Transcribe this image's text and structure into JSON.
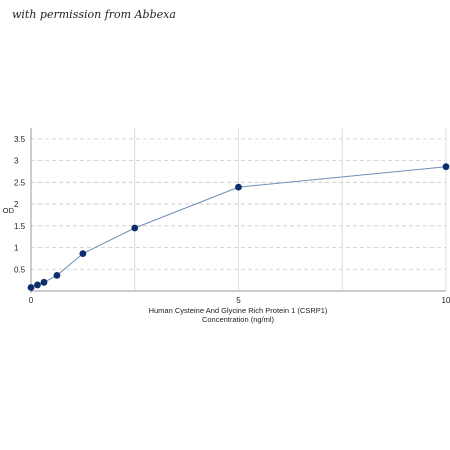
{
  "watermark": "with permission from Abbexa",
  "chart_data": {
    "type": "scatter",
    "title": "",
    "xlabel_lines": [
      "Human Cysteine And Glycine Rich Protein 1 (CSRP1)",
      "Concentration (ng/ml)"
    ],
    "ylabel": "OD",
    "xlim": [
      0,
      10
    ],
    "ylim": [
      0,
      3.75
    ],
    "x_ticks": [
      0,
      5,
      10
    ],
    "y_ticks": [
      0.5,
      1,
      1.5,
      2,
      2.5,
      3,
      3.5
    ],
    "grid": true,
    "series": [
      {
        "x": [
          0,
          0.156,
          0.313,
          0.625,
          1.25,
          2.5,
          5,
          10
        ],
        "y": [
          0.08,
          0.14,
          0.2,
          0.36,
          0.86,
          1.45,
          2.39,
          2.86
        ],
        "line_color": "#6e8fb6",
        "marker_color": "#0d2d6b"
      }
    ]
  }
}
